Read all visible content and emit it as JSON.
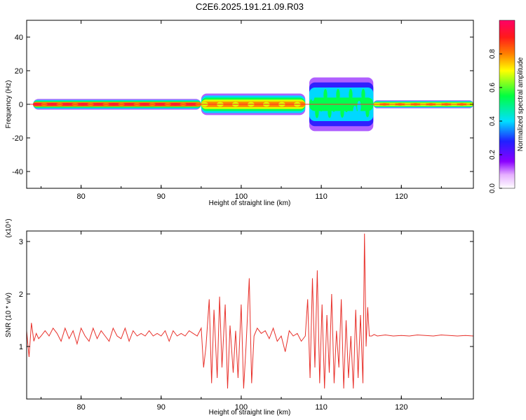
{
  "title": "C2E6.2025.191.21.09.R03",
  "colors": {
    "snr_line": "#e8302a",
    "frame": "#000000",
    "background": "#ffffff"
  },
  "chart_data": [
    {
      "type": "heatmap",
      "title": "C2E6.2025.191.21.09.R03",
      "xlabel": "Height of straight line (km)",
      "ylabel": "Frequency (Hz)",
      "xlim": [
        73.2,
        129
      ],
      "ylim": [
        -50,
        50
      ],
      "xticks": [
        "80",
        "90",
        "100",
        "110",
        "120"
      ],
      "yticks": [
        "40",
        "20",
        "0",
        "-20",
        "-40"
      ],
      "colorbar": {
        "label": "Normalized spectral amplitude",
        "range": [
          0,
          1
        ],
        "ticks": [
          "0.0",
          "0.2",
          "0.4",
          "0.6",
          "0.8"
        ],
        "colormap": "hsv-rainbow (white to magenta to blue to cyan to green to yellow to red)"
      },
      "description_band": [
        {
          "x_start": 74,
          "x_end": 95,
          "freq_halfwidth": 2,
          "peak_amplitude": 1.0
        },
        {
          "x_start": 95,
          "x_end": 108,
          "freq_halfwidth": 4,
          "peak_amplitude": 0.8
        },
        {
          "x_start": 108.5,
          "x_end": 116.5,
          "freq_halfwidth": 10,
          "peak_amplitude": 0.55
        },
        {
          "x_start": 116.5,
          "x_end": 129,
          "freq_halfwidth": 1.5,
          "peak_amplitude": 0.85
        }
      ]
    },
    {
      "type": "line",
      "xlabel": "Height of straight line (km)",
      "ylabel": "SNR (10 * v/v)",
      "y_multiplier": "(x10⁴)",
      "xlim": [
        73.2,
        129
      ],
      "ylim": [
        0,
        3.2
      ],
      "xticks": [
        "80",
        "90",
        "100",
        "110",
        "120"
      ],
      "yticks": [
        "1",
        "2",
        "3"
      ],
      "series": [
        {
          "x": [
            73.2,
            73.5,
            73.8,
            74.1,
            74.4,
            74.7,
            75,
            75.5,
            76,
            76.5,
            77,
            77.5,
            78,
            78.5,
            79,
            79.5,
            80,
            80.5,
            81,
            81.5,
            82,
            82.5,
            83,
            83.5,
            84,
            84.5,
            85,
            85.5,
            86,
            86.5,
            87,
            87.5,
            88,
            88.5,
            89,
            89.5,
            90,
            90.5,
            91,
            91.5,
            92,
            92.5,
            93,
            93.5,
            94,
            94.5,
            95,
            95.3,
            95.6,
            96,
            96.3,
            96.6,
            97,
            97.3,
            97.6,
            98,
            98.3,
            98.6,
            99,
            99.3,
            99.6,
            100,
            100.3,
            100.6,
            101,
            101.3,
            101.6,
            102,
            102.5,
            103,
            103.5,
            104,
            104.5,
            105,
            105.5,
            106,
            106.5,
            107,
            107.5,
            108,
            108.3,
            108.6,
            108.9,
            109.2,
            109.5,
            109.8,
            110.1,
            110.4,
            110.7,
            111,
            111.3,
            111.6,
            111.9,
            112.2,
            112.5,
            112.8,
            113.1,
            113.4,
            113.7,
            114,
            114.3,
            114.6,
            114.9,
            115.2,
            115.4,
            115.6,
            115.8,
            116,
            116.3,
            116.6,
            117,
            118,
            119,
            120,
            121,
            122,
            123,
            124,
            125,
            126,
            127,
            128,
            129
          ],
          "y": [
            1.3,
            0.8,
            1.45,
            1.1,
            1.25,
            1.15,
            1.2,
            1.3,
            1.2,
            1.35,
            1.25,
            1.1,
            1.35,
            1.15,
            1.3,
            1.05,
            1.35,
            1.2,
            1.1,
            1.35,
            1.15,
            1.3,
            1.2,
            1.1,
            1.35,
            1.2,
            1.15,
            1.35,
            1.1,
            1.3,
            1.2,
            1.25,
            1.2,
            1.3,
            1.2,
            1.25,
            1.2,
            1.3,
            1.1,
            1.3,
            1.2,
            1.25,
            1.2,
            1.3,
            1.25,
            1.2,
            1.35,
            0.6,
            1.0,
            1.9,
            0.3,
            1.7,
            0.4,
            1.95,
            0.6,
            1.8,
            0.2,
            1.4,
            0.5,
            1.3,
            0.4,
            1.8,
            0.2,
            1.0,
            2.3,
            0.3,
            1.2,
            1.35,
            1.25,
            1.3,
            1.15,
            1.35,
            1.1,
            1.2,
            0.9,
            1.3,
            1.2,
            1.25,
            1.1,
            1.2,
            1.9,
            0.4,
            2.3,
            0.6,
            2.45,
            0.3,
            1.8,
            0.2,
            1.6,
            0.5,
            2.0,
            0.3,
            1.3,
            0.6,
            1.9,
            0.2,
            1.5,
            0.4,
            1.2,
            0.2,
            1.7,
            0.4,
            1.6,
            0.3,
            3.15,
            1.0,
            1.75,
            1.2,
            1.2,
            1.23,
            1.2,
            1.22,
            1.2,
            1.21,
            1.2,
            1.22,
            1.21,
            1.2,
            1.22,
            1.21,
            1.2,
            1.21,
            1.2
          ]
        }
      ]
    }
  ]
}
